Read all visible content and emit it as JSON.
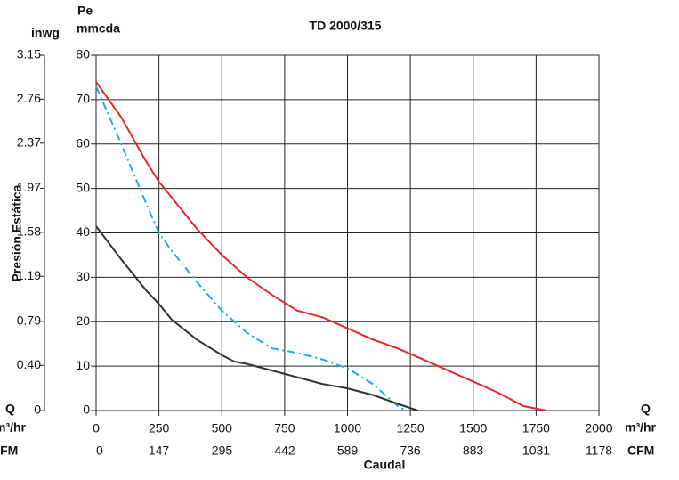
{
  "chart_data": {
    "type": "line",
    "title": "TD 2000/315",
    "y_label_top": "Pe",
    "y_unit": "mmcda",
    "y2_unit": "inwg",
    "y_label": "Presión Estática",
    "x_label": "Caudal",
    "x_symbol": "Q",
    "x_unit": "m³/hr",
    "x2_unit": "CFM",
    "xlim": [
      0,
      2000
    ],
    "xticks": [
      0,
      250,
      500,
      750,
      1000,
      1250,
      1500,
      1750,
      2000
    ],
    "x2lim": [
      0,
      1178
    ],
    "x2ticks": [
      0,
      147,
      295,
      442,
      589,
      736,
      883,
      1031,
      1178
    ],
    "ylim": [
      0,
      80
    ],
    "yticks": [
      0,
      10,
      20,
      30,
      40,
      50,
      60,
      70,
      80
    ],
    "y2lim": [
      0,
      3.15
    ],
    "y2ticks": [
      0,
      {
        "value": 0.4,
        "label": "0.40"
      },
      0.79,
      1.19,
      1.58,
      1.97,
      2.37,
      2.76,
      3.15
    ],
    "grid": true,
    "series": [
      {
        "color": "#e8262b",
        "style": "solid",
        "x": [
          0,
          100,
          200,
          250,
          300,
          400,
          500,
          600,
          700,
          800,
          900,
          1000,
          1100,
          1200,
          1300,
          1400,
          1500,
          1600,
          1700,
          1790
        ],
        "values": [
          74,
          66,
          56,
          51.5,
          48,
          41,
          35,
          30,
          26,
          22.5,
          21,
          18.5,
          16,
          14,
          11.5,
          9,
          6.5,
          4,
          1,
          0
        ]
      },
      {
        "color": "#1ab0e0",
        "style": "dash-dot",
        "x": [
          0,
          100,
          200,
          250,
          300,
          400,
          500,
          600,
          700,
          800,
          900,
          1000,
          1100,
          1200,
          1230
        ],
        "values": [
          73,
          60,
          46.5,
          40,
          36,
          29,
          22.5,
          17.5,
          14,
          13,
          11.5,
          9.5,
          6,
          1,
          0
        ]
      },
      {
        "color": "#333333",
        "style": "solid",
        "x": [
          0,
          100,
          200,
          250,
          300,
          400,
          500,
          550,
          600,
          700,
          800,
          900,
          1000,
          1100,
          1200,
          1280
        ],
        "values": [
          41.5,
          34,
          27,
          24,
          20.5,
          16,
          12.5,
          11,
          10.5,
          9,
          7.5,
          6,
          5,
          3.5,
          1.5,
          0
        ]
      }
    ]
  }
}
